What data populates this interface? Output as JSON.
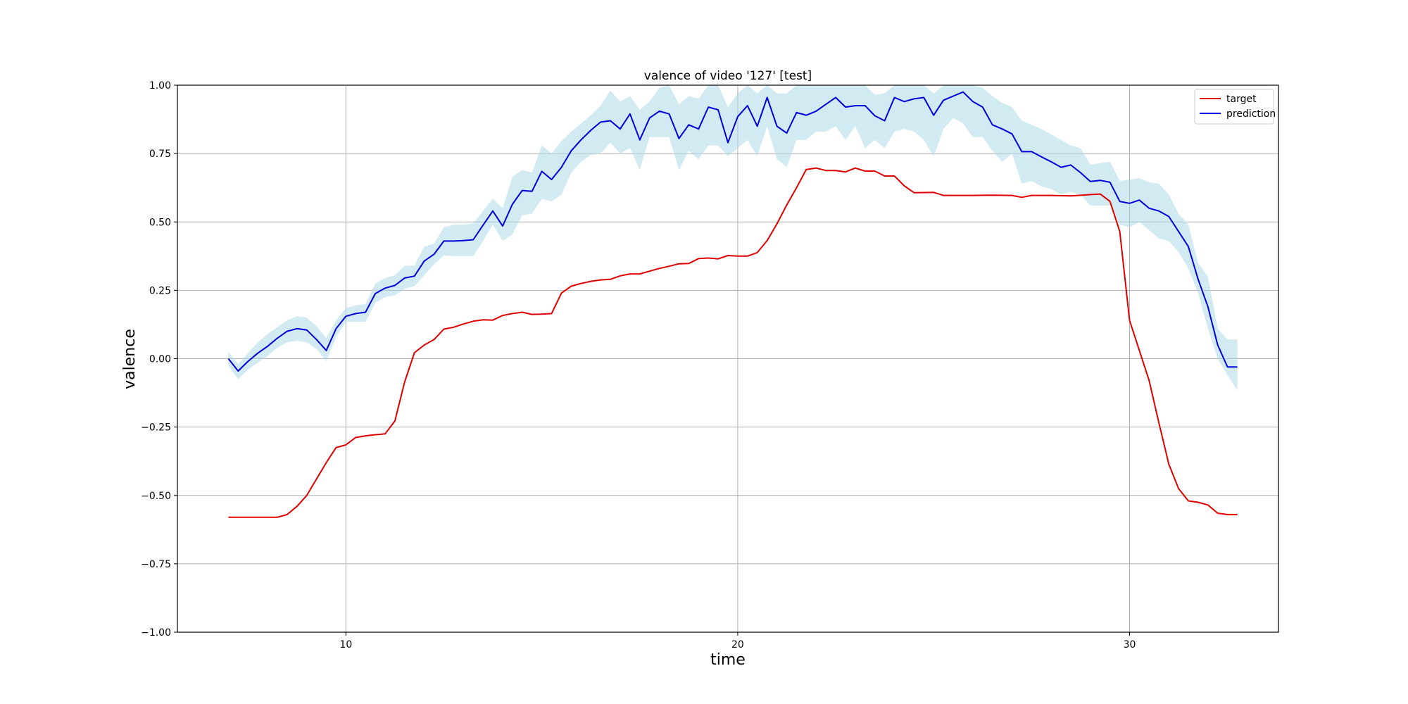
{
  "chart_data": {
    "type": "line",
    "title": "valence of video '127' [test]",
    "xlabel": "time",
    "ylabel": "valence",
    "xlim": [
      5.7,
      33.8
    ],
    "ylim": [
      -1.0,
      1.0
    ],
    "xticks": [
      10,
      20,
      30
    ],
    "xtick_labels": [
      "10",
      "20",
      "30"
    ],
    "yticks": [
      -1.0,
      -0.75,
      -0.5,
      -0.25,
      0.0,
      0.25,
      0.5,
      0.75,
      1.0
    ],
    "ytick_labels": [
      "−1.00",
      "−0.75",
      "−0.50",
      "−0.25",
      "0.00",
      "0.25",
      "0.50",
      "0.75",
      "1.00"
    ],
    "grid": true,
    "legend_position": "top-right",
    "colors": {
      "target": "#e00000",
      "prediction": "#0000dd",
      "band": "#add8e6"
    },
    "series": [
      {
        "name": "target",
        "color": "#e00000",
        "x": [
          7.0,
          7.5,
          8.0,
          8.25,
          8.5,
          8.75,
          9.0,
          9.25,
          9.5,
          9.75,
          10.0,
          10.25,
          10.5,
          10.75,
          11.0,
          11.25,
          11.5,
          11.75,
          12.0,
          12.25,
          12.5,
          12.75,
          13.0,
          13.25,
          13.5,
          13.75,
          14.0,
          14.25,
          14.5,
          14.75,
          15.0,
          15.25,
          15.5,
          15.75,
          16.0,
          16.25,
          16.5,
          16.75,
          17.0,
          17.25,
          17.5,
          17.75,
          18.0,
          18.25,
          18.5,
          18.75,
          19.0,
          19.25,
          19.5,
          19.75,
          20.0,
          20.25,
          20.5,
          20.75,
          21.0,
          21.25,
          21.5,
          21.75,
          22.0,
          22.25,
          22.5,
          22.75,
          23.0,
          23.25,
          23.5,
          23.75,
          24.0,
          24.25,
          24.5,
          25.0,
          25.25,
          25.5,
          26.0,
          26.5,
          27.0,
          27.25,
          27.5,
          28.0,
          28.5,
          29.0,
          29.25,
          29.5,
          29.75,
          30.0,
          30.25,
          30.5,
          30.75,
          31.0,
          31.25,
          31.5,
          31.75,
          32.0,
          32.25,
          32.5,
          32.75
        ],
        "y": [
          -0.58,
          -0.58,
          -0.58,
          -0.58,
          -0.57,
          -0.54,
          -0.5,
          -0.44,
          -0.38,
          -0.325,
          -0.315,
          -0.288,
          -0.282,
          -0.278,
          -0.275,
          -0.228,
          -0.085,
          0.022,
          0.05,
          0.07,
          0.108,
          0.115,
          0.127,
          0.137,
          0.142,
          0.141,
          0.158,
          0.165,
          0.17,
          0.162,
          0.163,
          0.165,
          0.24,
          0.265,
          0.275,
          0.283,
          0.288,
          0.29,
          0.303,
          0.31,
          0.31,
          0.32,
          0.33,
          0.338,
          0.347,
          0.348,
          0.366,
          0.368,
          0.365,
          0.377,
          0.375,
          0.375,
          0.388,
          0.432,
          0.493,
          0.562,
          0.625,
          0.692,
          0.697,
          0.688,
          0.688,
          0.683,
          0.697,
          0.686,
          0.686,
          0.668,
          0.668,
          0.632,
          0.607,
          0.608,
          0.597,
          0.597,
          0.597,
          0.598,
          0.597,
          0.59,
          0.597,
          0.597,
          0.595,
          0.6,
          0.602,
          0.575,
          0.465,
          0.14,
          0.03,
          -0.08,
          -0.235,
          -0.385,
          -0.475,
          -0.52,
          -0.525,
          -0.535,
          -0.565,
          -0.57,
          -0.57
        ]
      },
      {
        "name": "prediction",
        "color": "#0000dd",
        "x": [
          7.0,
          7.25,
          7.5,
          7.75,
          8.0,
          8.25,
          8.5,
          8.75,
          9.0,
          9.25,
          9.5,
          9.75,
          10.0,
          10.25,
          10.5,
          10.75,
          11.0,
          11.25,
          11.5,
          11.75,
          12.0,
          12.25,
          12.5,
          12.75,
          13.0,
          13.25,
          13.5,
          13.75,
          14.0,
          14.25,
          14.5,
          14.75,
          15.0,
          15.25,
          15.5,
          15.75,
          16.0,
          16.25,
          16.5,
          16.75,
          17.0,
          17.25,
          17.5,
          17.75,
          18.0,
          18.25,
          18.5,
          18.75,
          19.0,
          19.25,
          19.5,
          19.75,
          20.0,
          20.25,
          20.5,
          20.75,
          21.0,
          21.25,
          21.5,
          21.75,
          22.0,
          22.25,
          22.5,
          22.75,
          23.0,
          23.25,
          23.5,
          23.75,
          24.0,
          24.25,
          24.5,
          24.75,
          25.0,
          25.25,
          25.5,
          25.75,
          26.0,
          26.25,
          26.5,
          26.75,
          27.0,
          27.25,
          27.5,
          27.75,
          28.0,
          28.25,
          28.5,
          28.75,
          29.0,
          29.25,
          29.5,
          29.75,
          30.0,
          30.25,
          30.5,
          30.75,
          31.0,
          31.25,
          31.5,
          31.75,
          32.0,
          32.25,
          32.5,
          32.75
        ],
        "y": [
          0.0,
          -0.045,
          -0.01,
          0.02,
          0.045,
          0.075,
          0.1,
          0.11,
          0.105,
          0.07,
          0.03,
          0.11,
          0.155,
          0.165,
          0.17,
          0.238,
          0.258,
          0.268,
          0.295,
          0.302,
          0.357,
          0.382,
          0.43,
          0.43,
          0.432,
          0.435,
          0.488,
          0.54,
          0.485,
          0.565,
          0.615,
          0.612,
          0.685,
          0.655,
          0.7,
          0.76,
          0.8,
          0.835,
          0.865,
          0.87,
          0.84,
          0.895,
          0.8,
          0.88,
          0.905,
          0.895,
          0.805,
          0.855,
          0.84,
          0.92,
          0.91,
          0.79,
          0.885,
          0.925,
          0.85,
          0.955,
          0.85,
          0.825,
          0.9,
          0.89,
          0.905,
          0.93,
          0.955,
          0.92,
          0.925,
          0.925,
          0.888,
          0.87,
          0.955,
          0.94,
          0.95,
          0.955,
          0.89,
          0.945,
          0.96,
          0.975,
          0.94,
          0.92,
          0.855,
          0.84,
          0.822,
          0.757,
          0.757,
          0.738,
          0.72,
          0.7,
          0.708,
          0.68,
          0.648,
          0.652,
          0.645,
          0.575,
          0.568,
          0.58,
          0.55,
          0.54,
          0.52,
          0.465,
          0.41,
          0.29,
          0.19,
          0.05,
          -0.03,
          -0.03
        ],
        "band_upper": [
          0.025,
          -0.02,
          0.02,
          0.06,
          0.09,
          0.115,
          0.14,
          0.155,
          0.15,
          0.12,
          0.075,
          0.14,
          0.185,
          0.195,
          0.2,
          0.275,
          0.295,
          0.305,
          0.34,
          0.34,
          0.41,
          0.42,
          0.48,
          0.49,
          0.49,
          0.495,
          0.54,
          0.585,
          0.55,
          0.665,
          0.69,
          0.68,
          0.78,
          0.75,
          0.795,
          0.83,
          0.86,
          0.89,
          0.925,
          0.98,
          0.94,
          0.96,
          0.91,
          0.94,
          0.99,
          1.0,
          0.93,
          0.96,
          0.95,
          1.0,
          1.0,
          0.92,
          0.97,
          1.0,
          0.97,
          1.0,
          0.97,
          0.97,
          1.0,
          1.0,
          1.0,
          1.0,
          1.0,
          1.0,
          1.0,
          1.0,
          0.965,
          0.97,
          1.0,
          1.0,
          1.0,
          1.0,
          0.97,
          1.0,
          1.0,
          1.0,
          1.0,
          0.99,
          0.96,
          0.935,
          0.92,
          0.87,
          0.855,
          0.84,
          0.82,
          0.8,
          0.78,
          0.77,
          0.71,
          0.715,
          0.72,
          0.65,
          0.655,
          0.66,
          0.645,
          0.64,
          0.6,
          0.53,
          0.49,
          0.35,
          0.3,
          0.11,
          0.07,
          0.07
        ],
        "band_lower": [
          -0.025,
          -0.075,
          -0.04,
          -0.015,
          0.01,
          0.04,
          0.06,
          0.065,
          0.06,
          0.035,
          -0.01,
          0.08,
          0.135,
          0.135,
          0.135,
          0.205,
          0.225,
          0.232,
          0.255,
          0.265,
          0.305,
          0.345,
          0.378,
          0.375,
          0.375,
          0.375,
          0.43,
          0.49,
          0.43,
          0.455,
          0.525,
          0.53,
          0.585,
          0.575,
          0.6,
          0.68,
          0.72,
          0.745,
          0.75,
          0.79,
          0.75,
          0.77,
          0.69,
          0.81,
          0.81,
          0.81,
          0.69,
          0.76,
          0.73,
          0.78,
          0.78,
          0.74,
          0.77,
          0.8,
          0.74,
          0.85,
          0.73,
          0.7,
          0.8,
          0.8,
          0.83,
          0.83,
          0.85,
          0.8,
          0.85,
          0.77,
          0.8,
          0.77,
          0.83,
          0.84,
          0.83,
          0.8,
          0.74,
          0.84,
          0.88,
          0.86,
          0.81,
          0.81,
          0.76,
          0.72,
          0.75,
          0.64,
          0.65,
          0.63,
          0.62,
          0.6,
          0.61,
          0.6,
          0.56,
          0.56,
          0.56,
          0.49,
          0.48,
          0.5,
          0.47,
          0.44,
          0.43,
          0.39,
          0.33,
          0.24,
          0.11,
          0.0,
          -0.06,
          -0.115
        ]
      }
    ]
  }
}
